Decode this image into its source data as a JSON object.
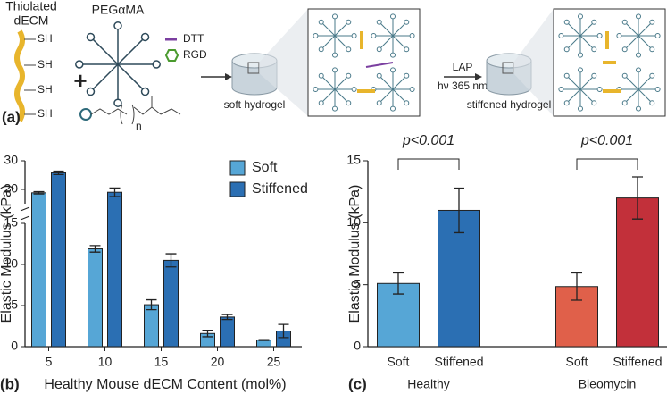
{
  "schematic": {
    "label": "(a)",
    "dECM_title": [
      "Thiolated",
      "dECM"
    ],
    "thiol_groups": [
      "SH",
      "SH",
      "SH",
      "SH"
    ],
    "plus": "+",
    "peg_title": "PEGαMA",
    "legend": [
      "DTT",
      "RGD"
    ],
    "repeat_unit": "n",
    "soft_label": "soft hydrogel",
    "step": [
      "LAP",
      "hν 365 nm"
    ],
    "stiff_label": "stiffened hydrogel"
  },
  "chart_data": [
    {
      "type": "bar",
      "panel_label": "(b)",
      "categories": [
        5,
        10,
        15,
        20,
        25
      ],
      "x_label": "Healthy Mouse dECM Content (mol%)",
      "y_label": "Elastic Modulus (kPa)",
      "ylim": [
        0,
        30
      ],
      "y_break": 15,
      "yticks": [
        0,
        5,
        10,
        15,
        20,
        30
      ],
      "legend": "upper right",
      "series": [
        {
          "name": "Soft",
          "color": "#56a6d6",
          "values": [
            18.8,
            11.9,
            5.1,
            1.6,
            0.8
          ],
          "errors": [
            0.4,
            0.4,
            0.6,
            0.4,
            0.05
          ]
        },
        {
          "name": "Stiffened",
          "color": "#2b6fb3",
          "values": [
            25.8,
            19.0,
            10.5,
            3.6,
            1.9
          ],
          "errors": [
            0.6,
            1.5,
            0.8,
            0.3,
            0.8
          ]
        }
      ]
    },
    {
      "type": "grouped_bar",
      "panel_label": "(c)",
      "groups": [
        "Healthy",
        "Bleomycin"
      ],
      "categories": [
        "Soft",
        "Stiffened",
        "Soft",
        "Stiffened"
      ],
      "values": [
        5.1,
        11.0,
        4.85,
        12.0
      ],
      "errors": [
        0.85,
        1.8,
        1.1,
        1.7
      ],
      "colors": [
        "#56a6d6",
        "#2b6fb3",
        "#e0604a",
        "#c2303a"
      ],
      "annotations": [
        "p<0.001",
        "p<0.001"
      ],
      "y_label": "Elastic Modulus (kPa)",
      "ylim": [
        0,
        15
      ],
      "yticks": [
        0,
        5,
        10,
        15
      ]
    }
  ]
}
